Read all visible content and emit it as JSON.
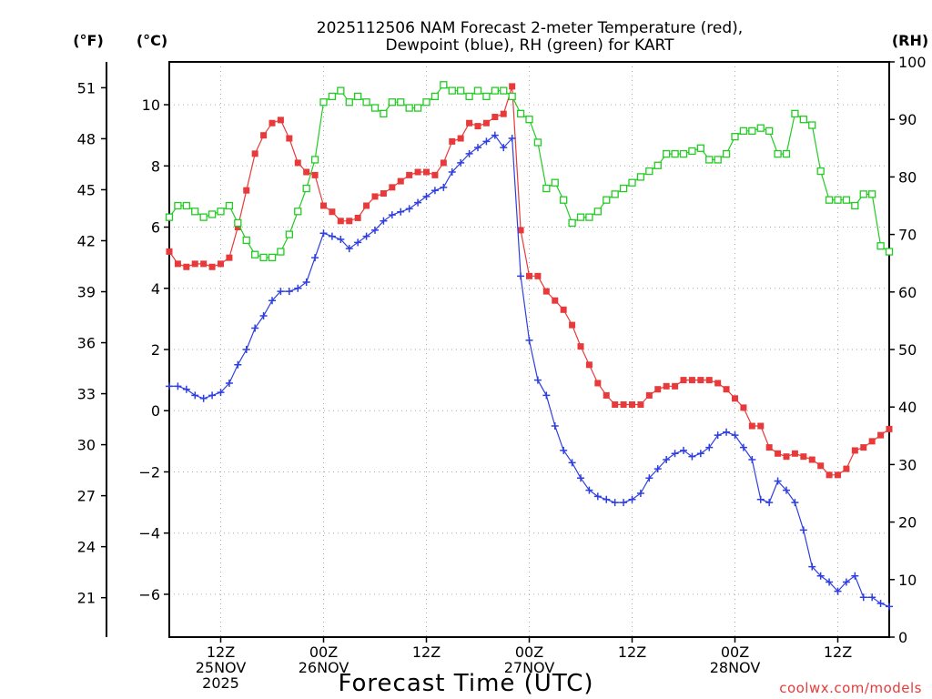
{
  "chart_data": {
    "type": "line",
    "title": [
      "2025112506 NAM Forecast 2-meter Temperature (red),",
      "Dewpoint (blue), RH (green) for KART"
    ],
    "xlabel": "Forecast Time (UTC)",
    "credit": "coolwx.com/models",
    "x_unit": "forecast hour from 2025-11-25 06Z",
    "xlim": [
      0,
      84
    ],
    "x_ticks": [
      {
        "x": 6,
        "lines": [
          "12Z",
          "25NOV",
          "2025"
        ]
      },
      {
        "x": 18,
        "lines": [
          "00Z",
          "26NOV"
        ]
      },
      {
        "x": 30,
        "lines": [
          "12Z"
        ]
      },
      {
        "x": 42,
        "lines": [
          "00Z",
          "27NOV"
        ]
      },
      {
        "x": 54,
        "lines": [
          "12Z"
        ]
      },
      {
        "x": 66,
        "lines": [
          "00Z",
          "28NOV"
        ]
      },
      {
        "x": 78,
        "lines": [
          "12Z"
        ]
      }
    ],
    "y_left_label": "(°C)",
    "y_left_ticks": [
      "-6",
      "-4",
      "-2",
      "0",
      "2",
      "4",
      "6",
      "8",
      "10"
    ],
    "ylim_c": [
      -7.4,
      11.4
    ],
    "y_far_left_label": "(°F)",
    "y_far_left_ticks": [
      "21",
      "24",
      "27",
      "30",
      "33",
      "36",
      "39",
      "42",
      "45",
      "48",
      "51"
    ],
    "y_right_label": "(RH)",
    "y_right_ticks": [
      "0",
      "10",
      "20",
      "30",
      "40",
      "50",
      "60",
      "70",
      "80",
      "90",
      "100"
    ],
    "ylim_rh": [
      0,
      100
    ],
    "grid": true,
    "series": [
      {
        "name": "Temperature",
        "axis": "C",
        "color": "#e83a3a",
        "marker": "filled-square",
        "x": [
          0,
          1,
          2,
          3,
          4,
          5,
          6,
          7,
          8,
          9,
          10,
          11,
          12,
          13,
          14,
          15,
          16,
          17,
          18,
          19,
          20,
          21,
          22,
          23,
          24,
          25,
          26,
          27,
          28,
          29,
          30,
          31,
          32,
          33,
          34,
          35,
          36,
          37,
          38,
          39,
          40,
          41,
          42,
          43,
          44,
          45,
          46,
          47,
          48,
          49,
          50,
          51,
          52,
          53,
          54,
          55,
          56,
          57,
          58,
          59,
          60,
          61,
          62,
          63,
          64,
          65,
          66,
          67,
          68,
          69,
          70,
          71,
          72,
          73,
          74,
          75,
          76,
          77,
          78,
          79,
          80,
          81,
          82,
          83,
          84
        ],
        "y": [
          5.2,
          4.8,
          4.7,
          4.8,
          4.8,
          4.7,
          4.8,
          5.0,
          6.0,
          7.2,
          8.4,
          9.0,
          9.4,
          9.5,
          8.9,
          8.1,
          7.8,
          7.7,
          6.7,
          6.5,
          6.2,
          6.2,
          6.3,
          6.7,
          7.0,
          7.1,
          7.3,
          7.5,
          7.7,
          7.8,
          7.8,
          7.7,
          8.1,
          8.8,
          8.9,
          9.4,
          9.3,
          9.4,
          9.6,
          9.7,
          10.6,
          5.9,
          4.4,
          4.4,
          3.9,
          3.6,
          3.3,
          2.8,
          2.1,
          1.5,
          0.9,
          0.5,
          0.2,
          0.2,
          0.2,
          0.2,
          0.5,
          0.7,
          0.8,
          0.8,
          1.0,
          1.0,
          1.0,
          1.0,
          0.9,
          0.7,
          0.4,
          0.1,
          -0.5,
          -0.5,
          -1.2,
          -1.4,
          -1.5,
          -1.4,
          -1.5,
          -1.6,
          -1.8,
          -2.1,
          -2.1,
          -1.9,
          -1.3,
          -1.2,
          -1.0,
          -0.8,
          -0.6
        ]
      },
      {
        "name": "Dewpoint",
        "axis": "C",
        "color": "#2f3fdf",
        "marker": "plus",
        "x": [
          0,
          1,
          2,
          3,
          4,
          5,
          6,
          7,
          8,
          9,
          10,
          11,
          12,
          13,
          14,
          15,
          16,
          17,
          18,
          19,
          20,
          21,
          22,
          23,
          24,
          25,
          26,
          27,
          28,
          29,
          30,
          31,
          32,
          33,
          34,
          35,
          36,
          37,
          38,
          39,
          40,
          41,
          42,
          43,
          44,
          45,
          46,
          47,
          48,
          49,
          50,
          51,
          52,
          53,
          54,
          55,
          56,
          57,
          58,
          59,
          60,
          61,
          62,
          63,
          64,
          65,
          66,
          67,
          68,
          69,
          70,
          71,
          72,
          73,
          74,
          75,
          76,
          77,
          78,
          79,
          80,
          81,
          82,
          83,
          84
        ],
        "y": [
          0.8,
          0.8,
          0.7,
          0.5,
          0.4,
          0.5,
          0.6,
          0.9,
          1.5,
          2.0,
          2.7,
          3.1,
          3.6,
          3.9,
          3.9,
          4.0,
          4.2,
          5.0,
          5.8,
          5.7,
          5.6,
          5.3,
          5.5,
          5.7,
          5.9,
          6.2,
          6.4,
          6.5,
          6.6,
          6.8,
          7.0,
          7.2,
          7.3,
          7.8,
          8.1,
          8.4,
          8.6,
          8.8,
          9.0,
          8.6,
          8.9,
          4.4,
          2.3,
          1.0,
          0.5,
          -0.5,
          -1.3,
          -1.7,
          -2.2,
          -2.6,
          -2.8,
          -2.9,
          -3.0,
          -3.0,
          -2.9,
          -2.7,
          -2.2,
          -1.9,
          -1.6,
          -1.4,
          -1.3,
          -1.5,
          -1.4,
          -1.2,
          -0.8,
          -0.7,
          -0.8,
          -1.2,
          -1.6,
          -2.9,
          -3.0,
          -2.3,
          -2.6,
          -3.0,
          -3.9,
          -5.1,
          -5.4,
          -5.6,
          -5.9,
          -5.6,
          -5.4,
          -6.1,
          -6.1,
          -6.3,
          -6.4
        ]
      },
      {
        "name": "RH",
        "axis": "RH",
        "color": "#22cc22",
        "marker": "open-square",
        "x": [
          0,
          1,
          2,
          3,
          4,
          5,
          6,
          7,
          8,
          9,
          10,
          11,
          12,
          13,
          14,
          15,
          16,
          17,
          18,
          19,
          20,
          21,
          22,
          23,
          24,
          25,
          26,
          27,
          28,
          29,
          30,
          31,
          32,
          33,
          34,
          35,
          36,
          37,
          38,
          39,
          40,
          41,
          42,
          43,
          44,
          45,
          46,
          47,
          48,
          49,
          50,
          51,
          52,
          53,
          54,
          55,
          56,
          57,
          58,
          59,
          60,
          61,
          62,
          63,
          64,
          65,
          66,
          67,
          68,
          69,
          70,
          71,
          72,
          73,
          74,
          75,
          76,
          77,
          78,
          79,
          80,
          81,
          82,
          83,
          84
        ],
        "y": [
          73,
          75,
          75,
          74,
          73,
          73.5,
          74,
          75,
          72,
          69,
          66.5,
          66,
          66,
          67,
          70,
          74,
          78,
          83,
          93,
          94,
          95,
          93,
          94,
          93,
          92,
          91,
          93,
          93,
          92,
          92,
          93,
          94,
          96,
          95,
          95,
          94,
          95,
          94,
          95,
          95,
          94,
          91,
          90,
          86,
          78,
          79,
          76,
          72,
          73,
          73,
          74,
          76,
          77,
          78,
          79,
          80,
          81,
          82,
          84,
          84,
          84,
          84.5,
          85,
          83,
          83,
          84,
          87,
          88,
          88,
          88.5,
          88,
          84,
          84,
          91,
          90,
          89,
          81,
          76,
          76,
          76,
          75,
          77,
          77,
          68,
          67
        ]
      }
    ]
  }
}
